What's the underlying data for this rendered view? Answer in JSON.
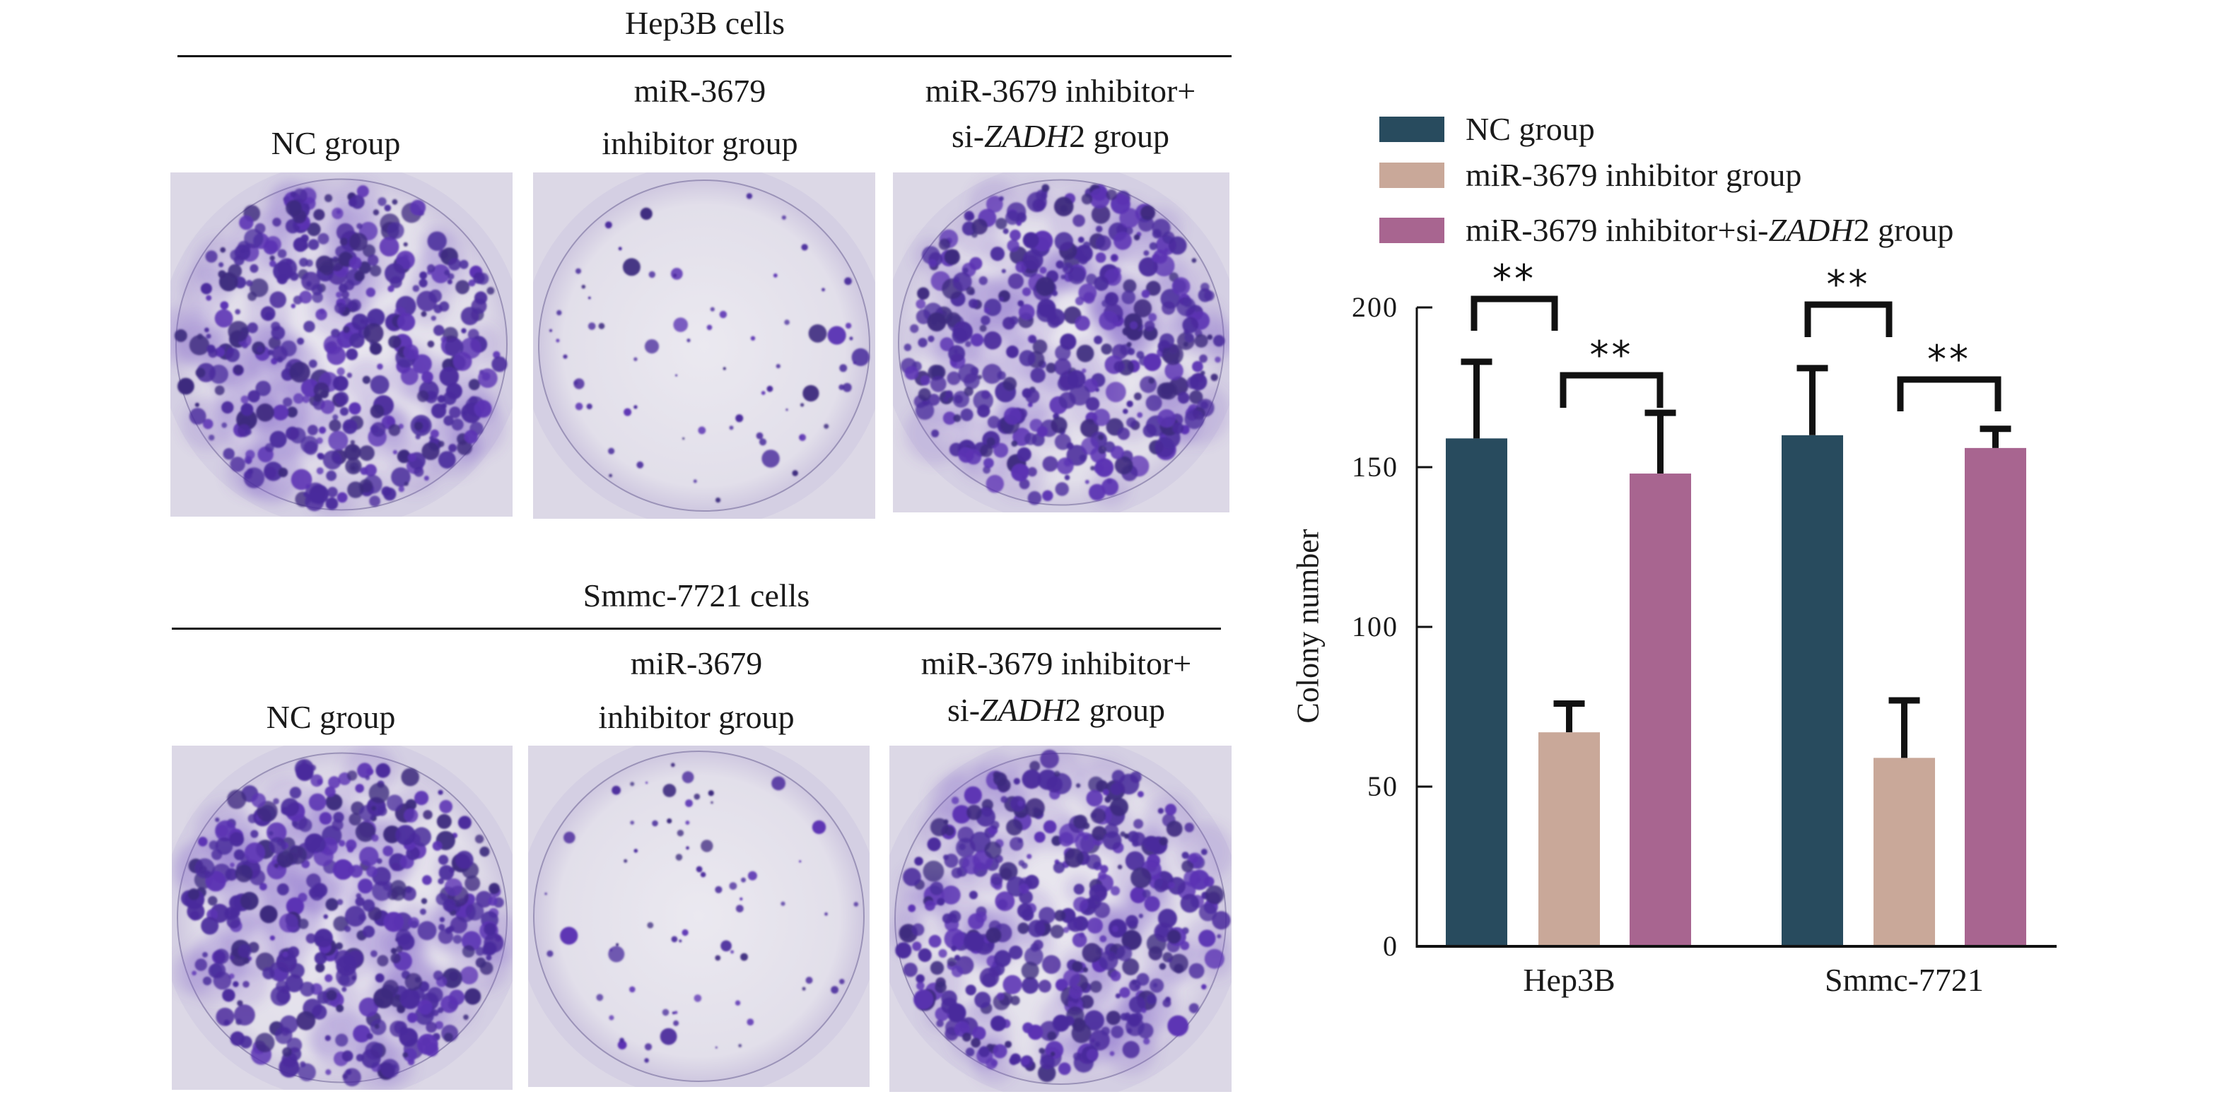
{
  "panels": [
    {
      "title": "Hep3B cells",
      "columns": [
        {
          "line1": "",
          "line2": "NC group",
          "line2_italic_part": ""
        },
        {
          "line1": "miR-3679",
          "line2": "inhibitor group",
          "line2_italic_part": ""
        },
        {
          "line1": "miR-3679 inhibitor+",
          "line2_prefix": "si-",
          "line2_italic": "ZADH",
          "line2_suffix": "2 group"
        }
      ],
      "plates": [
        {
          "group": "NC group",
          "density": "high"
        },
        {
          "group": "miR-3679 inhibitor group",
          "density": "low"
        },
        {
          "group": "miR-3679 inhibitor+si-ZADH2 group",
          "density": "high"
        }
      ]
    },
    {
      "title": "Smmc-7721 cells",
      "columns": [
        {
          "line1": "",
          "line2": "NC group"
        },
        {
          "line1": "miR-3679",
          "line2": "inhibitor group"
        },
        {
          "line1": "miR-3679 inhibitor+",
          "line2_prefix": "si-",
          "line2_italic": "ZADH",
          "line2_suffix": "2 group"
        }
      ],
      "plates": [
        {
          "group": "NC group",
          "density": "high"
        },
        {
          "group": "miR-3679 inhibitor group",
          "density": "low"
        },
        {
          "group": "miR-3679 inhibitor+si-ZADH2 group",
          "density": "high"
        }
      ]
    }
  ],
  "legend": [
    {
      "label": "NC group",
      "prefix": "NC group",
      "italic": "",
      "suffix": "",
      "color": "#284B5E"
    },
    {
      "label": "miR-3679 inhibitor group",
      "prefix": "miR-3679 inhibitor group",
      "italic": "",
      "suffix": "",
      "color": "#C9A899"
    },
    {
      "label": "miR-3679 inhibitor+si-ZADH2 group",
      "prefix": "miR-3679 inhibitor+si-",
      "italic": "ZADH",
      "suffix": "2 group",
      "color": "#A86590"
    }
  ],
  "chart_data": {
    "type": "bar",
    "title": "",
    "xlabel": "",
    "ylabel": "Colony number",
    "ylim": [
      0,
      200
    ],
    "yticks": [
      0,
      50,
      100,
      150,
      200
    ],
    "grid": false,
    "legend_position": "top",
    "categories": [
      "Hep3B",
      "Smmc-7721"
    ],
    "series": [
      {
        "name": "NC group",
        "color": "#284B5E",
        "values": [
          159,
          160
        ],
        "errors": [
          24,
          21
        ]
      },
      {
        "name": "miR-3679 inhibitor group",
        "color": "#C9A899",
        "values": [
          67,
          59
        ],
        "errors": [
          9,
          18
        ]
      },
      {
        "name": "miR-3679 inhibitor+si-ZADH2 group",
        "color": "#A86590",
        "values": [
          148,
          156
        ],
        "errors": [
          19,
          6
        ]
      }
    ],
    "significance": [
      {
        "category": "Hep3B",
        "between": [
          "NC group",
          "miR-3679 inhibitor group"
        ],
        "label": "**"
      },
      {
        "category": "Hep3B",
        "between": [
          "miR-3679 inhibitor group",
          "miR-3679 inhibitor+si-ZADH2 group"
        ],
        "label": "**"
      },
      {
        "category": "Smmc-7721",
        "between": [
          "NC group",
          "miR-3679 inhibitor group"
        ],
        "label": "**"
      },
      {
        "category": "Smmc-7721",
        "between": [
          "miR-3679 inhibitor group",
          "miR-3679 inhibitor+si-ZADH2 group"
        ],
        "label": "**"
      }
    ]
  }
}
